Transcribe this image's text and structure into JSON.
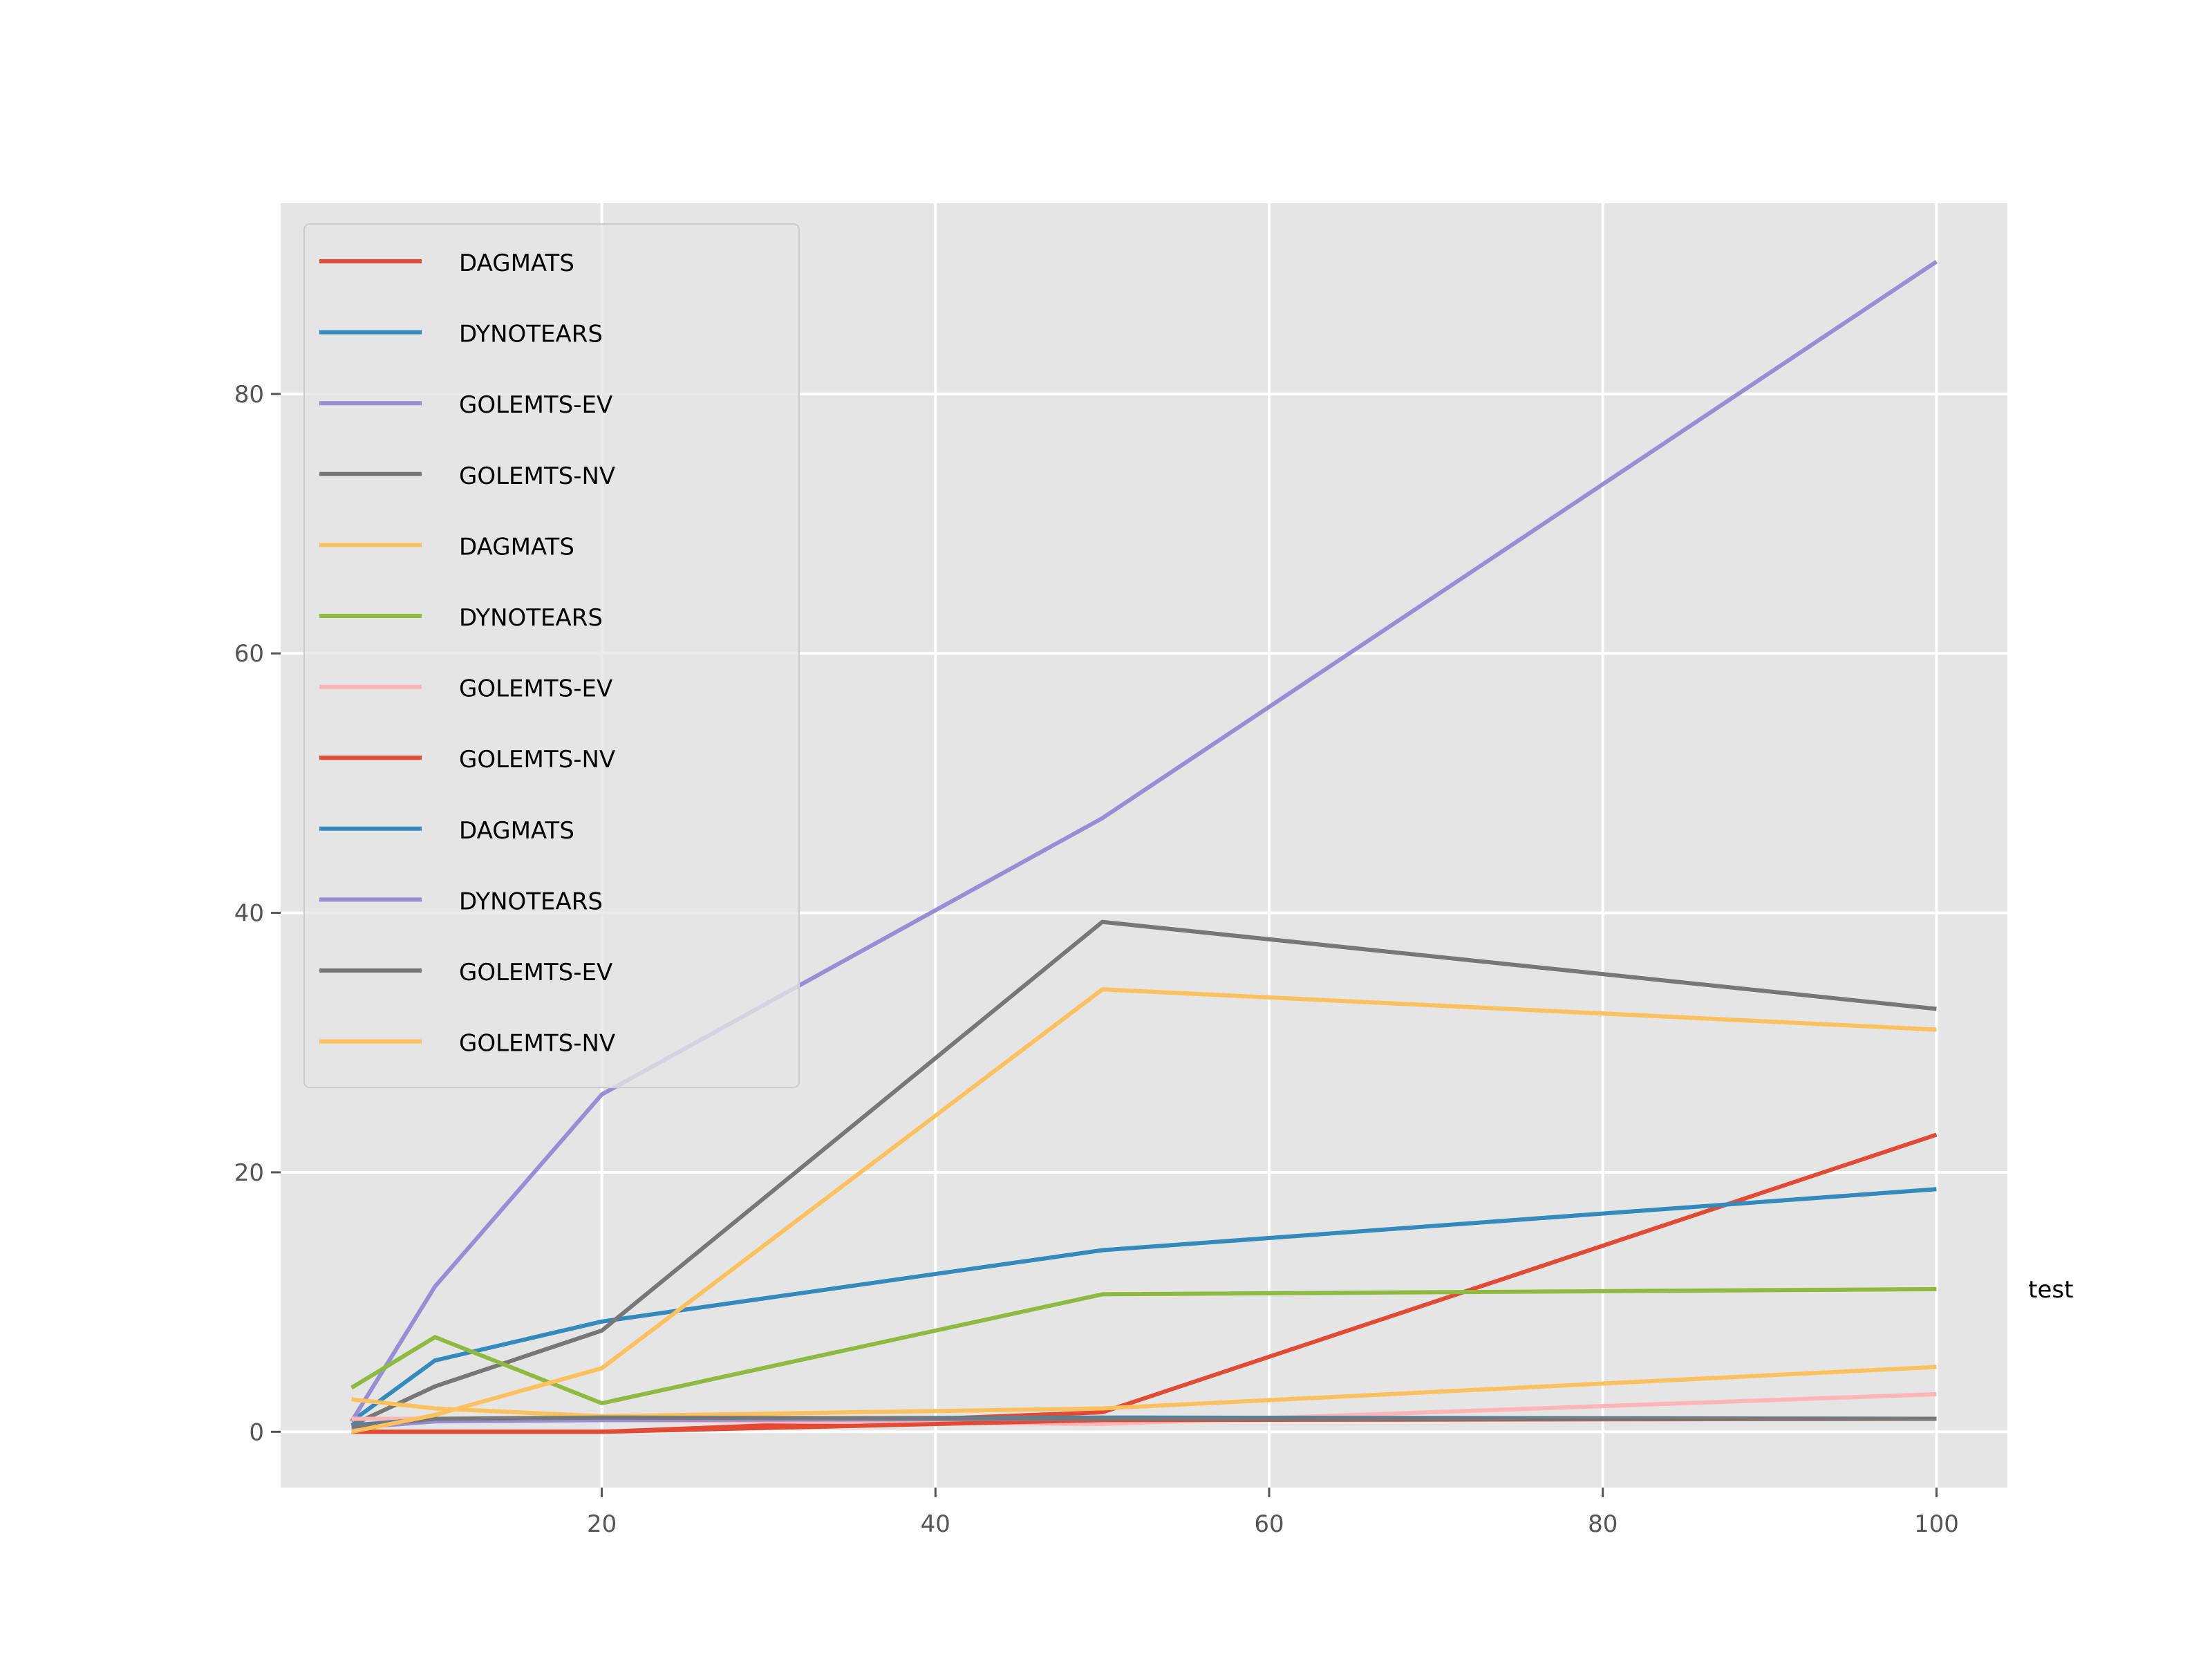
{
  "chart_data": {
    "type": "line",
    "title": "",
    "xlabel": "",
    "ylabel": "",
    "xlim": [
      0.75,
      104.25
    ],
    "ylim": [
      -4.3,
      94.7
    ],
    "x_ticks": [
      20,
      40,
      60,
      80,
      100
    ],
    "y_ticks": [
      0,
      20,
      40,
      60,
      80
    ],
    "grid": true,
    "legend_position": "upper-left",
    "x": [
      5,
      10,
      20,
      50,
      100
    ],
    "series": [
      {
        "name": "DAGMATS",
        "color": "#E24A33",
        "values": [
          0.0,
          0.0,
          0.0,
          1.5,
          22.9
        ]
      },
      {
        "name": "DYNOTEARS",
        "color": "#348ABD",
        "values": [
          0.8,
          5.5,
          8.5,
          14.0,
          18.7
        ]
      },
      {
        "name": "GOLEMTS-EV",
        "color": "#988ED5",
        "values": [
          0.8,
          11.2,
          26.0,
          47.3,
          90.2
        ]
      },
      {
        "name": "GOLEMTS-NV",
        "color": "#777777",
        "values": [
          0.5,
          3.5,
          7.8,
          39.3,
          32.6
        ]
      },
      {
        "name": "DAGMATS",
        "color": "#FBC15E",
        "values": [
          2.5,
          1.8,
          1.2,
          1.8,
          5.0
        ]
      },
      {
        "name": "DYNOTEARS",
        "color": "#8EBA42",
        "values": [
          3.4,
          7.3,
          2.2,
          10.6,
          11.0
        ]
      },
      {
        "name": "GOLEMTS-EV",
        "color": "#FFB5B8",
        "values": [
          1.0,
          1.0,
          0.9,
          0.6,
          2.9
        ]
      },
      {
        "name": "GOLEMTS-NV",
        "color": "#E24A33",
        "values": [
          0.0,
          0.0,
          0.0,
          0.9,
          1.0
        ]
      },
      {
        "name": "DAGMATS",
        "color": "#348ABD",
        "values": [
          0.5,
          1.0,
          1.0,
          1.1,
          1.0
        ]
      },
      {
        "name": "DYNOTEARS",
        "color": "#988ED5",
        "values": [
          0.3,
          0.8,
          0.9,
          1.0,
          1.0
        ]
      },
      {
        "name": "GOLEMTS-EV",
        "color": "#777777",
        "values": [
          0.4,
          1.0,
          1.1,
          1.0,
          1.0
        ]
      },
      {
        "name": "GOLEMTS-NV",
        "color": "#FBC15E",
        "values": [
          0.0,
          1.3,
          4.9,
          34.1,
          31.0
        ]
      }
    ],
    "annotations": [
      {
        "text": "test",
        "x": 105.5,
        "y": 11.0
      }
    ]
  }
}
